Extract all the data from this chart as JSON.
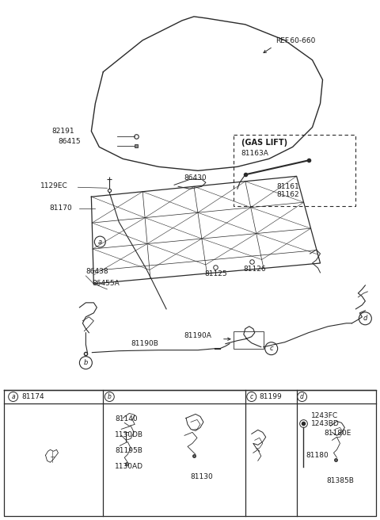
{
  "bg_color": "#ffffff",
  "line_color": "#2a2a2a",
  "text_color": "#1a1a1a",
  "fig_width": 4.8,
  "fig_height": 6.56,
  "dpi": 100,
  "labels": {
    "ref_label": "REF.60-660",
    "gas_lift": "(GAS LIFT)",
    "part_82191": "82191",
    "part_86415": "86415",
    "part_1129EC": "1129EC",
    "part_81170": "81170",
    "part_86430": "86430",
    "part_86438": "86438",
    "part_86455A": "86455A",
    "part_81125": "81125",
    "part_81126": "81126",
    "part_81190B": "81190B",
    "part_81190A": "81190A",
    "part_81163A": "81163A",
    "part_81161": "81161",
    "part_81162": "81162",
    "circle_a": "a",
    "circle_b": "b",
    "circle_c": "c",
    "circle_d": "d",
    "table_a": "a",
    "table_b": "b",
    "table_c": "c",
    "table_d": "d",
    "table_81174": "81174",
    "table_81199": "81199",
    "table_81140": "81140",
    "table_1130DB": "1130DB",
    "table_81195B": "81195B",
    "table_1130AD": "1130AD",
    "table_81130": "81130",
    "table_1243FC": "1243FC",
    "table_1243BD": "1243BD",
    "table_81180E": "81180E",
    "table_81180": "81180",
    "table_81385B": "81385B"
  }
}
